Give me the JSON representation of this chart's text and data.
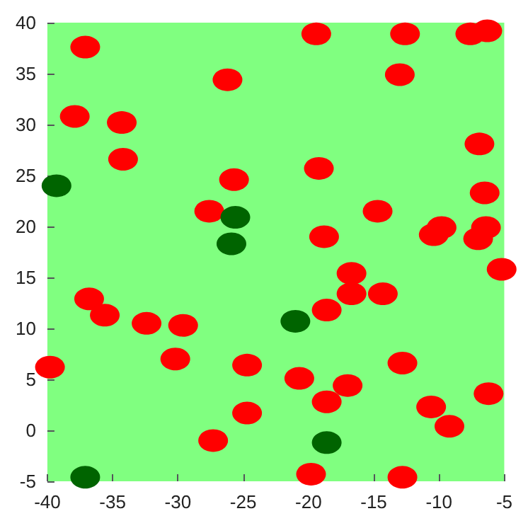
{
  "chart_data": {
    "type": "scatter",
    "marker": "circle",
    "grid": false,
    "xlim": [
      -40,
      -5
    ],
    "xticks": [
      -40,
      -35,
      -30,
      -25,
      -20,
      -15,
      -10,
      -5
    ],
    "ylim": [
      -5,
      40
    ],
    "yticks": [
      -5,
      0,
      5,
      10,
      15,
      20,
      25,
      30,
      35,
      40
    ],
    "series": [
      {
        "color": "#ff0000",
        "x": [
          -37.1,
          -37.9,
          -34.3,
          -34.2,
          -26.2,
          -25.7,
          -27.6,
          -19.4,
          -12.6,
          -13.0,
          -7.6,
          -6.3,
          -6.9,
          -19.2,
          -18.8,
          -14.7,
          -9.8,
          -10.4,
          -6.5,
          -6.4,
          -7.0,
          -5.2,
          -16.7,
          -16.7,
          -14.3,
          -18.6,
          -36.8,
          -35.6,
          -32.4,
          -29.6,
          -30.2,
          -39.8,
          -24.7,
          -24.7,
          -27.3,
          -20.7,
          -17.0,
          -18.6,
          -12.8,
          -10.6,
          -9.2,
          -6.2,
          -19.8,
          -12.8
        ],
        "values": [
          37.6,
          30.8,
          30.2,
          26.6,
          34.4,
          24.6,
          21.5,
          38.9,
          38.9,
          34.9,
          38.9,
          39.2,
          28.1,
          25.7,
          19.0,
          21.5,
          19.9,
          19.2,
          23.3,
          19.9,
          18.8,
          15.8,
          15.4,
          13.4,
          13.4,
          11.8,
          12.9,
          11.3,
          10.5,
          10.3,
          7.0,
          6.2,
          6.4,
          1.7,
          -1.0,
          5.1,
          4.4,
          2.8,
          6.6,
          2.3,
          0.4,
          3.6,
          -4.3,
          -4.6
        ]
      },
      {
        "color": "#006400",
        "x": [
          -39.3,
          -25.6,
          -25.9,
          -21.0,
          -18.6,
          -37.1
        ],
        "values": [
          24.0,
          20.9,
          18.3,
          10.7,
          -1.2,
          -4.6
        ]
      }
    ]
  }
}
